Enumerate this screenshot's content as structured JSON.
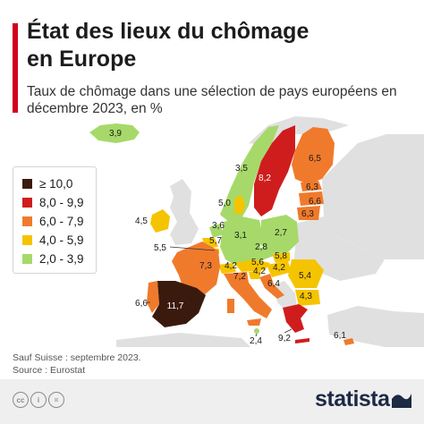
{
  "header": {
    "title_line1": "État des lieux du chômage",
    "title_line2": "en Europe",
    "subtitle": "Taux de chômage dans une sélection de pays européens en décembre 2023, en %"
  },
  "legend": {
    "items": [
      {
        "label": "≥ 10,0",
        "color": "#3b1a0e"
      },
      {
        "label": "8,0 - 9,9",
        "color": "#cf1d1d"
      },
      {
        "label": "6,0 - 7,9",
        "color": "#f07a2c"
      },
      {
        "label": "4,0 - 5,9",
        "color": "#f5c400"
      },
      {
        "label": "2,0 - 3,9",
        "color": "#a6d96a"
      }
    ]
  },
  "colors": {
    "other_land": "#e0e0e0",
    "sea": "#ffffff",
    "accent": "#d0021b"
  },
  "map_data": {
    "countries": [
      {
        "name": "Islande",
        "value": "3,9",
        "class": "2,0 - 3,9"
      },
      {
        "name": "Norvège",
        "value": "3,5",
        "class": "2,0 - 3,9"
      },
      {
        "name": "Suède",
        "value": "8,2",
        "class": "8,0 - 9,9"
      },
      {
        "name": "Finlande",
        "value": "6,5",
        "class": "6,0 - 7,9"
      },
      {
        "name": "Estonie",
        "value": "6,3",
        "class": "6,0 - 7,9"
      },
      {
        "name": "Lettonie",
        "value": "6,6",
        "class": "6,0 - 7,9"
      },
      {
        "name": "Lituanie",
        "value": "6,3",
        "class": "6,0 - 7,9"
      },
      {
        "name": "Danemark",
        "value": "5,0",
        "class": "4,0 - 5,9"
      },
      {
        "name": "Irlande",
        "value": "4,5",
        "class": "4,0 - 5,9"
      },
      {
        "name": "Pays-Bas",
        "value": "3,6",
        "class": "2,0 - 3,9"
      },
      {
        "name": "Belgique",
        "value": "5,7",
        "class": "4,0 - 5,9"
      },
      {
        "name": "Luxembourg",
        "value": "5,5",
        "class": "4,0 - 5,9"
      },
      {
        "name": "Allemagne",
        "value": "3,1",
        "class": "2,0 - 3,9"
      },
      {
        "name": "Pologne",
        "value": "2,7",
        "class": "2,0 - 3,9"
      },
      {
        "name": "Tchéquie",
        "value": "2,8",
        "class": "2,0 - 3,9"
      },
      {
        "name": "Slovaquie",
        "value": "5,8",
        "class": "4,0 - 5,9"
      },
      {
        "name": "Autriche",
        "value": "5,6",
        "class": "4,0 - 5,9"
      },
      {
        "name": "Hongrie",
        "value": "4,2",
        "class": "4,0 - 5,9"
      },
      {
        "name": "Roumanie",
        "value": "5,4",
        "class": "4,0 - 5,9"
      },
      {
        "name": "Suisse",
        "value": "4,2",
        "class": "4,0 - 5,9"
      },
      {
        "name": "Slovénie",
        "value": "4,2",
        "class": "4,0 - 5,9"
      },
      {
        "name": "France",
        "value": "7,3",
        "class": "6,0 - 7,9"
      },
      {
        "name": "Italie",
        "value": "7,2",
        "class": "6,0 - 7,9"
      },
      {
        "name": "Croatie",
        "value": "6,4",
        "class": "6,0 - 7,9"
      },
      {
        "name": "Bulgarie",
        "value": "4,3",
        "class": "4,0 - 5,9"
      },
      {
        "name": "Portugal",
        "value": "6,6",
        "class": "6,0 - 7,9"
      },
      {
        "name": "Espagne",
        "value": "11,7",
        "class": "≥ 10,0"
      },
      {
        "name": "Grèce",
        "value": "9,2",
        "class": "8,0 - 9,9"
      },
      {
        "name": "Malte",
        "value": "2,4",
        "class": "2,0 - 3,9"
      },
      {
        "name": "Chypre",
        "value": "6,1",
        "class": "6,0 - 7,9"
      }
    ]
  },
  "notes": {
    "footnote": "Sauf Suisse : septembre 2023.",
    "source": "Source : Eurostat"
  },
  "footer": {
    "brand": "statista",
    "license_icons": [
      "cc",
      "i",
      "="
    ]
  }
}
